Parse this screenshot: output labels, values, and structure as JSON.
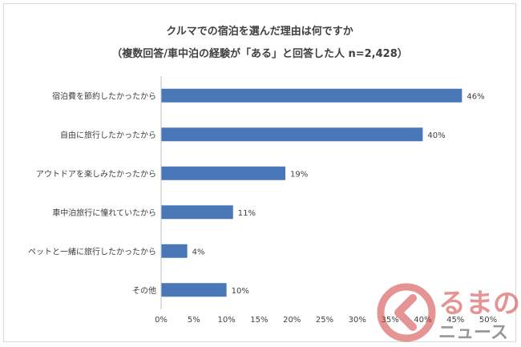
{
  "chart_data": {
    "type": "bar",
    "orientation": "horizontal",
    "title": "クルマでの宿泊を選んだ理由は何ですか",
    "subtitle": "（複数回答/車中泊の経験が「ある」と回答した人 n=2,428）",
    "categories": [
      "宿泊費を節約したかったから",
      "自由に旅行したかったから",
      "アウトドアを楽しみたかったから",
      "車中泊旅行に憧れていたから",
      "ペットと一緒に旅行したかったから",
      "その他"
    ],
    "values": [
      46,
      40,
      19,
      11,
      4,
      10
    ],
    "value_labels": [
      "46%",
      "40%",
      "19%",
      "11%",
      "4%",
      "10%"
    ],
    "xlim": [
      0,
      50
    ],
    "xticks": [
      "0%",
      "5%",
      "10%",
      "15%",
      "20%",
      "25%",
      "30%",
      "35%",
      "40%",
      "45%",
      "50%"
    ],
    "bar_color": "#4a77b8",
    "grid": false
  },
  "watermark": {
    "logo_text_top": "るまの",
    "logo_text_bottom": "ニュース",
    "icon": "kuruma-news-logo-icon",
    "color": "#cc2a2a"
  }
}
